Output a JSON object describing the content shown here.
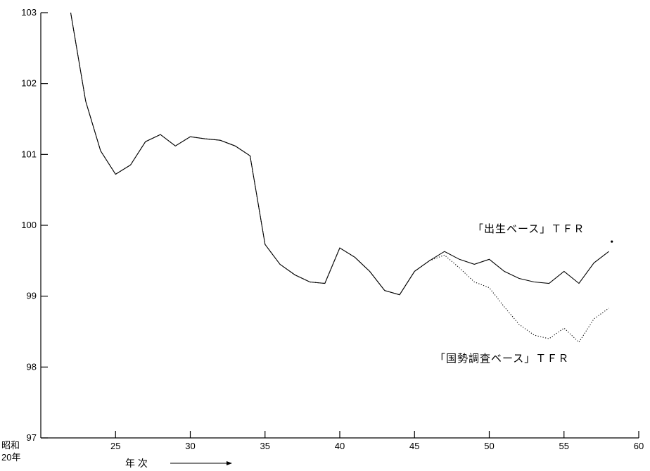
{
  "chart_data": {
    "type": "line",
    "x_origin_label": [
      "昭和",
      "20年"
    ],
    "xlabel": "年 次",
    "xlim": [
      20,
      60
    ],
    "ylim": [
      97,
      103
    ],
    "xticks": [
      25,
      30,
      35,
      40,
      45,
      50,
      55,
      60
    ],
    "yticks": [
      97,
      98,
      99,
      100,
      101,
      102,
      103
    ],
    "grid": false,
    "series": [
      {
        "name": "「出生ベース」ＴＦＲ",
        "style": "solid",
        "x": [
          22,
          23,
          24,
          25,
          26,
          27,
          28,
          29,
          30,
          31,
          32,
          33,
          34,
          35,
          36,
          37,
          38,
          39,
          40,
          41,
          42,
          43,
          44,
          45,
          46,
          47,
          48,
          49,
          50,
          51,
          52,
          53,
          54,
          55,
          56,
          57,
          58
        ],
        "values": [
          103.0,
          101.75,
          101.05,
          100.72,
          100.85,
          101.18,
          101.28,
          101.12,
          101.25,
          101.22,
          101.2,
          101.12,
          100.98,
          99.73,
          99.45,
          99.3,
          99.2,
          99.18,
          99.68,
          99.55,
          99.35,
          99.08,
          99.02,
          99.35,
          99.5,
          99.63,
          99.52,
          99.45,
          99.52,
          99.35,
          99.25,
          99.2,
          99.18,
          99.35,
          99.18,
          99.47,
          99.63
        ]
      },
      {
        "name": "「国勢調査ベース」ＴＦＲ",
        "style": "dotted",
        "x": [
          22,
          23,
          24,
          25,
          26,
          27,
          28,
          29,
          30,
          31,
          32,
          33,
          34,
          35,
          36,
          37,
          38,
          39,
          40,
          41,
          42,
          43,
          44,
          45,
          46,
          47,
          48,
          49,
          50,
          51,
          52,
          53,
          54,
          55,
          56,
          57,
          58
        ],
        "values": [
          103.0,
          101.75,
          101.05,
          100.72,
          100.85,
          101.18,
          101.28,
          101.12,
          101.25,
          101.22,
          101.2,
          101.12,
          100.98,
          99.73,
          99.45,
          99.3,
          99.2,
          99.18,
          99.68,
          99.55,
          99.35,
          99.08,
          99.02,
          99.35,
          99.5,
          99.58,
          99.4,
          99.2,
          99.12,
          98.85,
          98.6,
          98.45,
          98.4,
          98.55,
          98.35,
          98.68,
          98.83
        ]
      }
    ],
    "end_marker": {
      "x": 58.2,
      "y": 99.77
    }
  }
}
